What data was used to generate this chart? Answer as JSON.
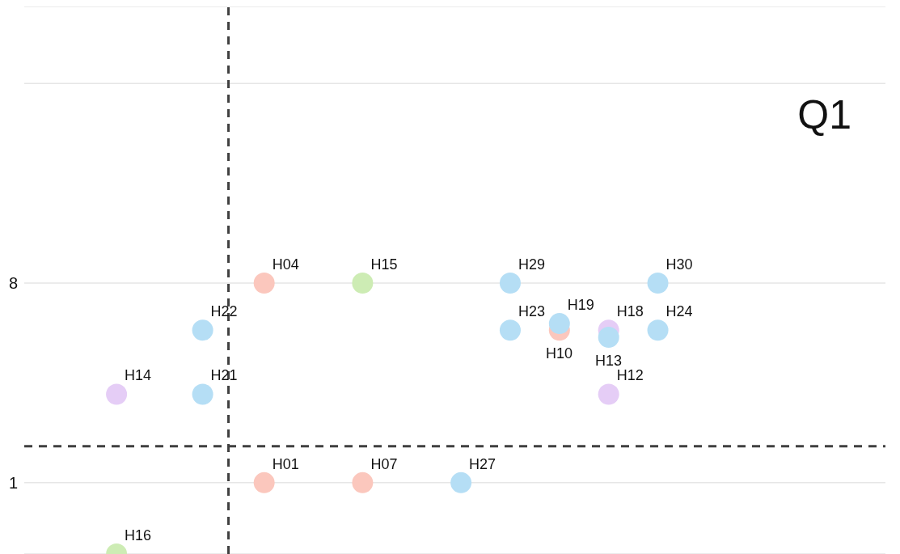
{
  "chart_data": {
    "type": "scatter",
    "annotations": [
      "Q1"
    ],
    "categories": [
      null,
      null,
      null,
      null,
      null,
      null,
      null,
      null,
      null,
      null,
      null,
      null,
      null,
      null,
      null,
      null,
      null,
      null,
      null,
      null,
      null,
      null,
      null,
      null,
      null,
      null,
      null,
      null,
      null,
      null,
      null,
      null,
      null,
      null,
      null,
      null,
      null,
      null,
      null,
      null,
      null,
      null,
      null,
      null,
      null,
      null,
      null,
      null,
      null,
      null,
      null,
      null,
      null,
      null,
      null,
      null,
      null,
      null,
      null,
      null,
      null,
      null,
      null,
      null,
      null,
      null,
      null,
      null,
      null,
      null
    ],
    "ylim": [
      -1.5,
      17.7
    ],
    "yticks": [
      1,
      8,
      {
        "value": 15,
        "label": null
      }
    ],
    "grid": "y",
    "marker": "circle",
    "ref_lines": [
      {
        "axis": "y",
        "value": 2.28,
        "color": "#404040",
        "line_style": "dashed"
      }
    ],
    "series": [
      {
        "color": "#fbc7bd",
        "values": [
          null,
          null,
          null,
          null,
          null,
          null,
          null,
          null,
          null,
          null,
          null,
          null,
          null,
          null,
          null,
          null,
          null,
          null,
          null,
          8,
          null,
          null,
          null,
          null,
          null,
          null,
          null,
          1,
          null,
          null,
          null,
          null,
          null,
          null,
          null,
          null,
          null,
          null,
          null,
          null,
          null,
          null,
          null,
          6.35,
          null,
          null,
          null,
          null,
          null,
          null,
          null,
          null,
          null,
          null,
          null,
          null,
          null,
          null,
          null,
          null,
          null,
          null,
          null,
          null,
          null,
          null,
          null,
          null,
          null,
          null
        ],
        "value_labels": [
          null,
          null,
          null,
          null,
          null,
          null,
          null,
          null,
          null,
          null,
          null,
          null,
          null,
          null,
          null,
          null,
          null,
          null,
          null,
          "H04",
          null,
          null,
          null,
          null,
          null,
          null,
          null,
          "H07",
          null,
          null,
          null,
          null,
          null,
          null,
          null,
          null,
          null,
          null,
          null,
          null,
          null,
          null,
          null,
          "H10",
          null,
          null,
          null,
          null,
          null,
          null,
          null,
          null,
          null,
          null,
          null,
          null,
          null,
          null,
          null,
          null,
          null,
          null,
          null,
          null,
          null,
          null,
          null,
          null,
          null,
          null
        ]
      },
      {
        "color": "#fbc7bd",
        "values": [
          null,
          null,
          null,
          null,
          null,
          null,
          null,
          null,
          null,
          null,
          null,
          null,
          null,
          null,
          null,
          null,
          null,
          null,
          null,
          1,
          null,
          null,
          null,
          null,
          null,
          null,
          null,
          null,
          null,
          null,
          null,
          null,
          null,
          null,
          null,
          null,
          null,
          null,
          null,
          null,
          null,
          null,
          null,
          null,
          null,
          null,
          null,
          null,
          null,
          null,
          null,
          null,
          null,
          null,
          null,
          null,
          null,
          null,
          null,
          null,
          null,
          null,
          null,
          null,
          null,
          null,
          null,
          null,
          null,
          null
        ],
        "value_labels": [
          null,
          null,
          null,
          null,
          null,
          null,
          null,
          null,
          null,
          null,
          null,
          null,
          null,
          null,
          null,
          null,
          null,
          null,
          null,
          "H01",
          null,
          null,
          null,
          null,
          null,
          null,
          null,
          null,
          null,
          null,
          null,
          null,
          null,
          null,
          null,
          null,
          null,
          null,
          null,
          null,
          null,
          null,
          null,
          null,
          null,
          null,
          null,
          null,
          null,
          null,
          null,
          null,
          null,
          null,
          null,
          null,
          null,
          null,
          null,
          null,
          null,
          null,
          null,
          null,
          null,
          null,
          null,
          null,
          null,
          null
        ]
      },
      {
        "color": "#cdecb4",
        "values": [
          null,
          null,
          null,
          null,
          null,
          null,
          null,
          -1.5,
          null,
          null,
          null,
          null,
          null,
          null,
          null,
          null,
          null,
          null,
          null,
          null,
          null,
          null,
          null,
          null,
          null,
          null,
          null,
          8,
          null,
          null,
          null,
          null,
          null,
          null,
          null,
          null,
          null,
          null,
          null,
          null,
          null,
          null,
          null,
          null,
          null,
          null,
          null,
          null,
          null,
          null,
          null,
          null,
          null,
          null,
          null,
          null,
          null,
          null,
          null,
          null,
          null,
          null,
          null,
          null,
          null,
          null,
          null,
          null,
          null,
          null
        ],
        "value_labels": [
          null,
          null,
          null,
          null,
          null,
          null,
          null,
          "H16",
          null,
          null,
          null,
          null,
          null,
          null,
          null,
          null,
          null,
          null,
          null,
          null,
          null,
          null,
          null,
          null,
          null,
          null,
          null,
          "H15",
          null,
          null,
          null,
          null,
          null,
          null,
          null,
          null,
          null,
          null,
          null,
          null,
          null,
          null,
          null,
          null,
          null,
          null,
          null,
          null,
          null,
          null,
          null,
          null,
          null,
          null,
          null,
          null,
          null,
          null,
          null,
          null,
          null,
          null,
          null,
          null,
          null,
          null,
          null,
          null,
          null,
          null
        ]
      },
      {
        "color": "#e5cdf6",
        "values": [
          null,
          null,
          null,
          null,
          null,
          null,
          null,
          4.1,
          null,
          null,
          null,
          null,
          null,
          null,
          null,
          null,
          null,
          null,
          null,
          null,
          null,
          null,
          null,
          null,
          null,
          null,
          null,
          null,
          null,
          null,
          null,
          null,
          null,
          null,
          null,
          null,
          null,
          null,
          null,
          null,
          null,
          null,
          null,
          null,
          null,
          null,
          null,
          6.35,
          null,
          null,
          null,
          null,
          null,
          null,
          null,
          null,
          null,
          null,
          null,
          null,
          null,
          null,
          null,
          null,
          null,
          null,
          null,
          null,
          null,
          null
        ],
        "value_labels": [
          null,
          null,
          null,
          null,
          null,
          null,
          null,
          "H14",
          null,
          null,
          null,
          null,
          null,
          null,
          null,
          null,
          null,
          null,
          null,
          null,
          null,
          null,
          null,
          null,
          null,
          null,
          null,
          null,
          null,
          null,
          null,
          null,
          null,
          null,
          null,
          null,
          null,
          null,
          null,
          null,
          null,
          null,
          null,
          null,
          null,
          null,
          null,
          "H18",
          null,
          null,
          null,
          null,
          null,
          null,
          null,
          null,
          null,
          null,
          null,
          null,
          null,
          null,
          null,
          null,
          null,
          null,
          null,
          null,
          null,
          null
        ]
      },
      {
        "color": "#e5cdf6",
        "values": [
          null,
          null,
          null,
          null,
          null,
          null,
          null,
          null,
          null,
          null,
          null,
          null,
          null,
          null,
          null,
          null,
          null,
          null,
          null,
          null,
          null,
          null,
          null,
          null,
          null,
          null,
          null,
          null,
          null,
          null,
          null,
          null,
          null,
          null,
          null,
          null,
          null,
          null,
          null,
          null,
          null,
          null,
          null,
          null,
          null,
          null,
          null,
          4.1,
          null,
          null,
          null,
          null,
          null,
          null,
          null,
          null,
          null,
          null,
          null,
          null,
          null,
          null,
          null,
          null,
          null,
          null,
          null,
          null,
          null,
          null
        ],
        "value_labels": [
          null,
          null,
          null,
          null,
          null,
          null,
          null,
          null,
          null,
          null,
          null,
          null,
          null,
          null,
          null,
          null,
          null,
          null,
          null,
          null,
          null,
          null,
          null,
          null,
          null,
          null,
          null,
          null,
          null,
          null,
          null,
          null,
          null,
          null,
          null,
          null,
          null,
          null,
          null,
          null,
          null,
          null,
          null,
          null,
          null,
          null,
          null,
          "H12",
          null,
          null,
          null,
          null,
          null,
          null,
          null,
          null,
          null,
          null,
          null,
          null,
          null,
          null,
          null,
          null,
          null,
          null,
          null,
          null,
          null,
          null
        ]
      },
      {
        "color": "#b5def5",
        "values": [
          null,
          null,
          null,
          null,
          null,
          null,
          null,
          null,
          null,
          null,
          null,
          null,
          null,
          null,
          6.35,
          null,
          null,
          null,
          null,
          null,
          null,
          null,
          null,
          null,
          null,
          null,
          null,
          null,
          null,
          null,
          null,
          null,
          null,
          null,
          null,
          1,
          null,
          null,
          null,
          8,
          null,
          null,
          null,
          6.58,
          null,
          null,
          null,
          6.1,
          null,
          null,
          null,
          8,
          null,
          null,
          null,
          null,
          null,
          null,
          null,
          null,
          null,
          null,
          null,
          null,
          null,
          null,
          null,
          null,
          null,
          null
        ],
        "value_labels": [
          null,
          null,
          null,
          null,
          null,
          null,
          null,
          null,
          null,
          null,
          null,
          null,
          null,
          null,
          "H22",
          null,
          null,
          null,
          null,
          null,
          null,
          null,
          null,
          null,
          null,
          null,
          null,
          null,
          null,
          null,
          null,
          null,
          null,
          null,
          null,
          "H27",
          null,
          null,
          null,
          "H29",
          null,
          null,
          null,
          "H19",
          null,
          null,
          null,
          "H13",
          null,
          null,
          null,
          "H30",
          null,
          null,
          null,
          null,
          null,
          null,
          null,
          null,
          null,
          null,
          null,
          null,
          null,
          null,
          null,
          null,
          null,
          null
        ]
      },
      {
        "color": "#b5def5",
        "values": [
          null,
          null,
          null,
          null,
          null,
          null,
          null,
          null,
          null,
          null,
          null,
          null,
          null,
          null,
          4.1,
          null,
          null,
          null,
          null,
          null,
          null,
          null,
          null,
          null,
          null,
          null,
          null,
          null,
          null,
          null,
          null,
          null,
          null,
          null,
          null,
          null,
          null,
          null,
          null,
          6.35,
          null,
          null,
          null,
          null,
          null,
          null,
          null,
          null,
          null,
          null,
          null,
          6.35,
          null,
          null,
          null,
          null,
          null,
          null,
          null,
          null,
          null,
          null,
          null,
          null,
          null,
          null,
          null,
          null,
          null,
          null
        ],
        "value_labels": [
          null,
          null,
          null,
          null,
          null,
          null,
          null,
          null,
          null,
          null,
          null,
          null,
          null,
          null,
          "H21",
          null,
          null,
          null,
          null,
          null,
          null,
          null,
          null,
          null,
          null,
          null,
          null,
          null,
          null,
          null,
          null,
          null,
          null,
          null,
          null,
          null,
          null,
          null,
          null,
          "H23",
          null,
          null,
          null,
          null,
          null,
          null,
          null,
          null,
          null,
          null,
          null,
          "H24",
          null,
          null,
          null,
          null,
          null,
          null,
          null,
          null,
          null,
          null,
          null,
          null,
          null,
          null,
          null,
          null,
          null,
          null
        ]
      }
    ]
  }
}
